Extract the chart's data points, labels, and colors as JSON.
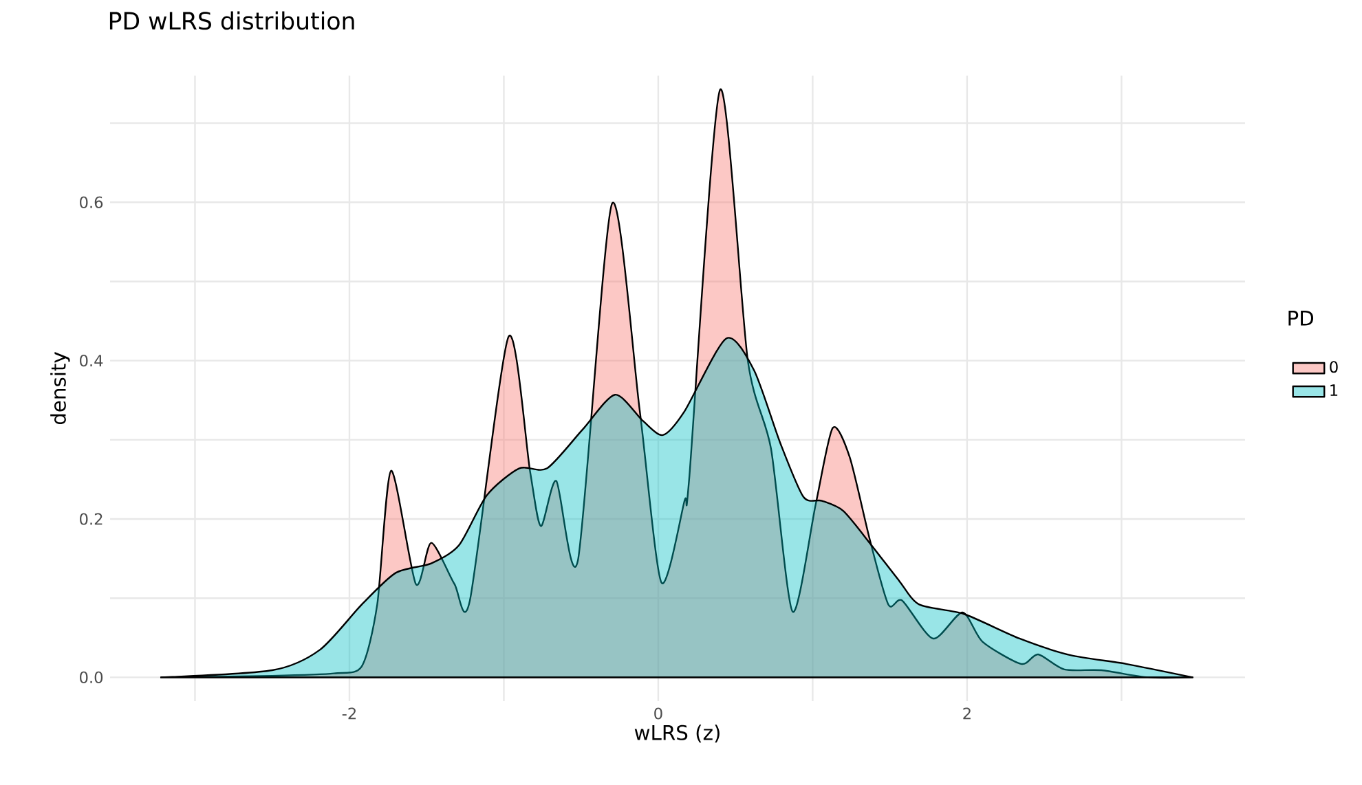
{
  "chart_data": {
    "type": "area",
    "title": "PD wLRS distribution",
    "xlabel": "wLRS (z)",
    "ylabel": "density",
    "legend_title": "PD",
    "xlim": [
      -3.55,
      3.8
    ],
    "ylim": [
      -0.03,
      0.76
    ],
    "xticks": [
      {
        "value": -3,
        "label": null
      },
      -2,
      {
        "value": -1,
        "label": null
      },
      0,
      {
        "value": 1,
        "label": null
      },
      2,
      {
        "value": 3,
        "label": null
      }
    ],
    "yticks": [
      {
        "value": 0,
        "label": "0.0"
      },
      {
        "value": 0.1,
        "label": null
      },
      0.2,
      {
        "value": 0.3,
        "label": null
      },
      0.4,
      {
        "value": 0.5,
        "label": null
      },
      0.6,
      {
        "value": 0.7,
        "label": null
      }
    ],
    "grid": true,
    "legend": "right",
    "series": [
      {
        "name": "0",
        "color": "#f8766d",
        "x": [
          -3.22,
          -2.5,
          -2.1,
          -1.92,
          -1.82,
          -1.73,
          -1.57,
          -1.47,
          -1.32,
          -1.22,
          -0.97,
          -0.83,
          -0.76,
          -0.66,
          -0.52,
          -0.3,
          -0.12,
          0.02,
          0.17,
          0.2,
          0.4,
          0.58,
          0.73,
          0.87,
          1.02,
          1.13,
          1.24,
          1.37,
          1.49,
          1.58,
          1.78,
          1.97,
          2.1,
          2.35,
          2.46,
          2.63,
          2.87,
          3.17,
          3.46
        ],
        "values": [
          0,
          0.002,
          0.005,
          0.014,
          0.092,
          0.261,
          0.118,
          0.17,
          0.118,
          0.097,
          0.43,
          0.26,
          0.191,
          0.248,
          0.148,
          0.598,
          0.337,
          0.12,
          0.223,
          0.25,
          0.742,
          0.4,
          0.289,
          0.083,
          0.219,
          0.315,
          0.278,
          0.174,
          0.092,
          0.097,
          0.049,
          0.082,
          0.045,
          0.017,
          0.029,
          0.01,
          0.009,
          0,
          0
        ]
      },
      {
        "name": "1",
        "color": "#00bfc4",
        "x": [
          -3.22,
          -2.5,
          -2.19,
          -1.92,
          -1.7,
          -1.47,
          -1.29,
          -1.11,
          -0.9,
          -0.72,
          -0.49,
          -0.28,
          -0.1,
          0.03,
          0.17,
          0.44,
          0.62,
          0.79,
          0.94,
          1.06,
          1.2,
          1.38,
          1.56,
          1.69,
          1.98,
          2.34,
          2.67,
          3.03,
          3.46
        ],
        "values": [
          0,
          0.009,
          0.035,
          0.092,
          0.132,
          0.144,
          0.167,
          0.23,
          0.264,
          0.264,
          0.313,
          0.357,
          0.324,
          0.306,
          0.336,
          0.428,
          0.388,
          0.296,
          0.228,
          0.223,
          0.21,
          0.167,
          0.122,
          0.092,
          0.08,
          0.049,
          0.028,
          0.017,
          0
        ]
      }
    ]
  }
}
